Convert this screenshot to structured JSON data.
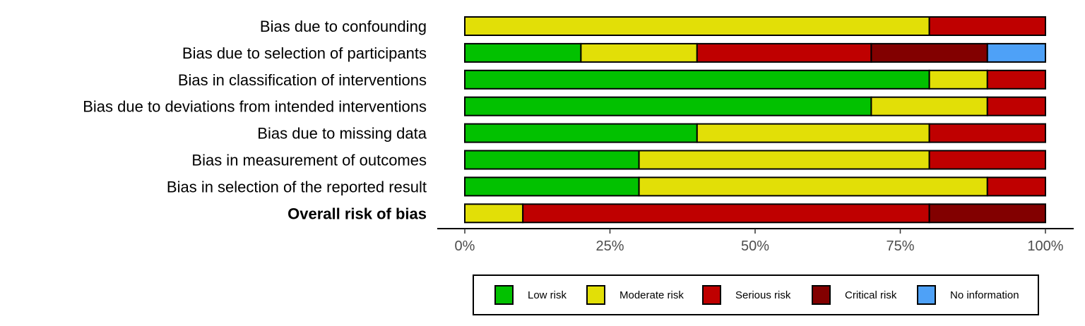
{
  "chart_data": {
    "type": "bar",
    "orientation": "horizontal",
    "stacked": true,
    "categories": [
      "Bias due to confounding",
      "Bias due to selection of participants",
      "Bias in classification of interventions",
      "Bias due to deviations from intended interventions",
      "Bias due to missing data",
      "Bias in measurement of outcomes",
      "Bias in selection of the reported result",
      "Overall risk of bias"
    ],
    "bold_categories": [
      "Overall risk of bias"
    ],
    "series": [
      {
        "name": "Low risk",
        "color": "#02C100",
        "values": [
          0,
          20,
          80,
          70,
          40,
          30,
          30,
          0
        ]
      },
      {
        "name": "Moderate risk",
        "color": "#E2DF07",
        "values": [
          80,
          20,
          10,
          20,
          40,
          50,
          60,
          10
        ]
      },
      {
        "name": "Serious risk",
        "color": "#BF0000",
        "values": [
          20,
          30,
          10,
          10,
          20,
          20,
          10,
          70
        ]
      },
      {
        "name": "Critical risk",
        "color": "#820000",
        "values": [
          0,
          20,
          0,
          0,
          0,
          0,
          0,
          20
        ]
      },
      {
        "name": "No information",
        "color": "#4EA1F7",
        "values": [
          0,
          10,
          0,
          0,
          0,
          0,
          0,
          0
        ]
      }
    ],
    "x_ticks": [
      0,
      25,
      50,
      75,
      100
    ],
    "x_tick_labels": [
      "0%",
      "25%",
      "50%",
      "75%",
      "100%"
    ],
    "xlim": [
      0,
      100
    ],
    "xlabel": "",
    "ylabel": "",
    "title": "",
    "grid": false,
    "legend_position": "bottom"
  }
}
